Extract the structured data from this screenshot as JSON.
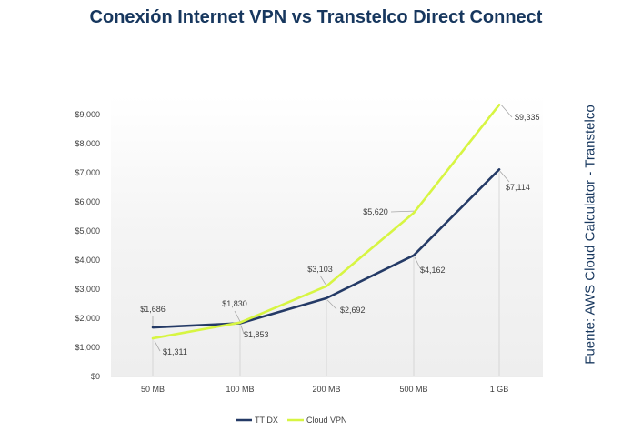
{
  "title": "Conexión Internet VPN vs Transtelco Direct Connect",
  "source_note": "Fuente: AWS Cloud Calculator - Transtelco",
  "chart_data": {
    "type": "line",
    "categories": [
      "50 MB",
      "100 MB",
      "200 MB",
      "500 MB",
      "1 GB"
    ],
    "ylim": [
      0,
      9000
    ],
    "yticks": [
      0,
      1000,
      2000,
      3000,
      4000,
      5000,
      6000,
      7000,
      8000,
      9000
    ],
    "ytick_labels": [
      "$0",
      "$1,000",
      "$2,000",
      "$3,000",
      "$4,000",
      "$5,000",
      "$6,000",
      "$7,000",
      "$8,000",
      "$9,000"
    ],
    "legend_position": "bottom",
    "series": [
      {
        "name": "TT DX",
        "color": "#243a66",
        "values": [
          1686,
          1830,
          2692,
          4162,
          7114
        ],
        "labels": [
          "$1,686",
          "$1,830",
          "$2,692",
          "$4,162",
          "$7,114"
        ]
      },
      {
        "name": "Cloud  VPN",
        "color": "#d7f542",
        "values": [
          1311,
          1853,
          3103,
          5620,
          9335
        ],
        "labels": [
          "$1,311",
          "$1,853",
          "$3,103",
          "$5,620",
          "$9,335"
        ]
      }
    ]
  }
}
